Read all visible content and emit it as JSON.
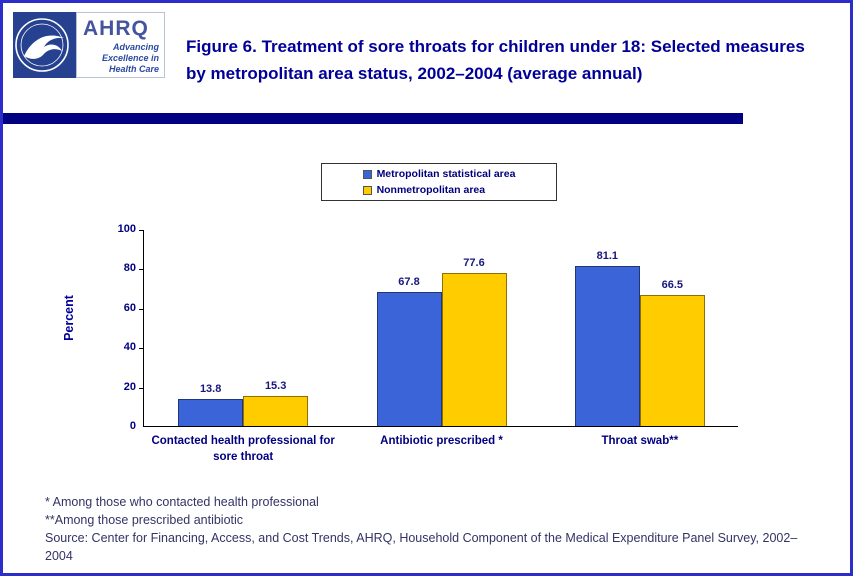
{
  "header": {
    "hhs_logo_alt": "hhs-seal",
    "ahrq_logo": {
      "name": "AHRQ",
      "tagline": "Advancing\nExcellence in\nHealth Care"
    },
    "title": "Figure 6. Treatment of sore throats for children under 18: Selected measures by metropolitan area status, 2002–2004 (average annual)"
  },
  "chart_data": {
    "type": "bar",
    "title": "Figure 6. Treatment of sore throats for children under 18: Selected measures by metropolitan area status, 2002–2004 (average annual)",
    "categories": [
      "Contacted health professional for sore throat",
      "Antibiotic prescribed *",
      "Throat swab**"
    ],
    "series": [
      {
        "name": "Metropolitan statistical area",
        "color": "#3a64d8",
        "values": [
          13.8,
          67.8,
          81.1
        ]
      },
      {
        "name": "Nonmetropolitan area",
        "color": "#ffcc00",
        "values": [
          15.3,
          77.6,
          66.5
        ]
      }
    ],
    "xlabel": "",
    "ylabel": "Percent",
    "ylim": [
      0,
      100
    ],
    "yticks": [
      0,
      20,
      40,
      60,
      80,
      100
    ],
    "grid": false,
    "legend_position": "top"
  },
  "footnotes": [
    "* Among those who contacted health professional",
    "**Among those prescribed antibiotic",
    "Source: Center for Financing, Access, and Cost Trends, AHRQ, Household Component of the Medical Expenditure Panel Survey, 2002–2004"
  ],
  "colors": {
    "page_border": "#2d2dcc",
    "divider": "#000080",
    "title_text": "#000099",
    "axis_text": "#000080",
    "footnote_text": "#333366",
    "metro_bar": "#3a64d8",
    "nonmetro_bar": "#ffcc00"
  }
}
